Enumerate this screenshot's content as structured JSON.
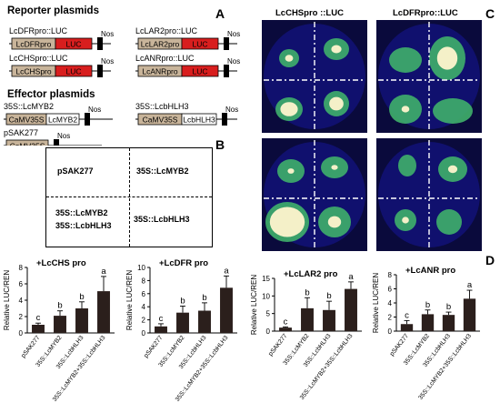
{
  "panels": {
    "a": "A",
    "b": "B",
    "c": "C",
    "d": "D"
  },
  "reporter": {
    "title": "Reporter plasmids",
    "constructs": [
      {
        "label": "LcDFRpro::LUC",
        "promoter": "LcDFRpro",
        "gene": "LUC",
        "term": "Nos"
      },
      {
        "label": "LcLAR2pro::LUC",
        "promoter": "LcLAR2pro",
        "gene": "LUC",
        "term": "Nos"
      },
      {
        "label": "LcCHSpro::LUC",
        "promoter": "LcCHSpro",
        "gene": "LUC",
        "term": "Nos"
      },
      {
        "label": "LcANRpro::LUC",
        "promoter": "LcANRpro",
        "gene": "LUC",
        "term": "Nos"
      }
    ]
  },
  "effector": {
    "title": "Effector plasmids",
    "constructs": [
      {
        "label": "35S::LcMYB2",
        "promoter": "CaMV35S",
        "gene": "LcMYB2",
        "term": "Nos"
      },
      {
        "label": "35S::LcbHLH3",
        "promoter": "CaMV35S",
        "gene": "LcbHLH3",
        "term": "Nos"
      },
      {
        "label": "pSAK277",
        "promoter": "CaMV35S",
        "gene": "",
        "term": "Nos"
      }
    ]
  },
  "legend_box": {
    "top_left": "pSAK277",
    "top_right": "35S::LcMYB2",
    "bottom_left_1": "35S::LcMYB2",
    "bottom_left_2": "35S::LcbHLH3",
    "bottom_right": "35S::LcbHLH3"
  },
  "images": {
    "left_title": "LcCHSpro ::LUC",
    "right_title": "LcDFRpro::LUC",
    "colors": {
      "background": "#0a0a3c",
      "leaf": "#10106e",
      "spot": "#3fb06a",
      "hot": "#f4f0c8"
    }
  },
  "chart_data": [
    {
      "type": "bar",
      "title": "+LcCHS pro",
      "ylabel": "Relative LUC/REN",
      "ylim": [
        0,
        8
      ],
      "yticks": [
        0,
        2,
        4,
        6,
        8
      ],
      "categories": [
        "pSAK277",
        "35S::LcMYB2",
        "35S::LcbHLH3",
        "35S::LcMYB2+35S::LcbHLH3"
      ],
      "values": [
        1.0,
        2.1,
        3.0,
        5.1
      ],
      "errors": [
        0.2,
        0.6,
        0.8,
        1.8
      ],
      "letters": [
        "c",
        "b",
        "b",
        "a"
      ]
    },
    {
      "type": "bar",
      "title": "+LcDFR pro",
      "ylabel": "Relative LUC/REN",
      "ylim": [
        0,
        10
      ],
      "yticks": [
        0,
        2,
        4,
        6,
        8,
        10
      ],
      "categories": [
        "pSAK277",
        "35S::LcMYB2",
        "35S::LcbHLH3",
        "35S::LcMYB2+35S::LcbHLH3"
      ],
      "values": [
        1.0,
        3.1,
        3.4,
        6.9
      ],
      "errors": [
        0.4,
        1.0,
        1.2,
        1.8
      ],
      "letters": [
        "c",
        "b",
        "b",
        "a"
      ]
    },
    {
      "type": "bar",
      "title": "+LcLAR2 pro",
      "ylabel": "Relative LUC/REN",
      "ylim": [
        0,
        15
      ],
      "yticks": [
        0,
        5,
        10,
        15
      ],
      "categories": [
        "pSAK277",
        "35S::LcMYB2",
        "35S::LcbHLH3",
        "35S::LcMYB2+35S::LcbHLH3"
      ],
      "values": [
        1.0,
        6.5,
        6.0,
        12.0
      ],
      "errors": [
        0.2,
        3.0,
        2.5,
        2.0
      ],
      "letters": [
        "c",
        "b",
        "b",
        "a"
      ]
    },
    {
      "type": "bar",
      "title": "+LcANR pro",
      "ylabel": "Relative LUC/REN",
      "ylim": [
        0,
        8
      ],
      "yticks": [
        0,
        2,
        4,
        6,
        8
      ],
      "categories": [
        "pSAK277",
        "35S::LcMYB2",
        "35S::LcbHLH3",
        "35S::LcMYB2+35S::LcbHLH3"
      ],
      "values": [
        1.0,
        2.4,
        2.3,
        4.6
      ],
      "errors": [
        0.5,
        0.6,
        0.4,
        1.2
      ],
      "letters": [
        "c",
        "b",
        "b",
        "a"
      ]
    }
  ]
}
